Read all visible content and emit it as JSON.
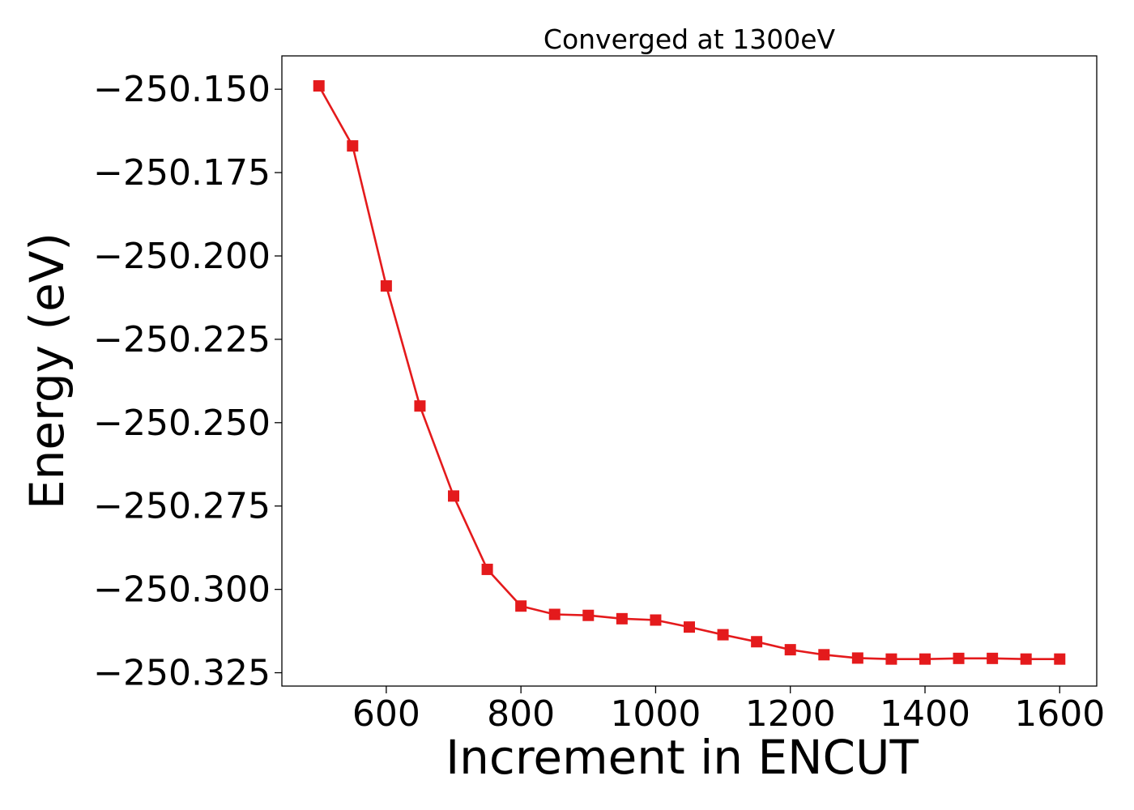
{
  "chart_data": {
    "type": "line",
    "title": "Converged at 1300eV",
    "xlabel": "Increment in ENCUT",
    "ylabel": "Energy (eV)",
    "xlim": [
      445,
      1655
    ],
    "ylim": [
      -250.329,
      -250.14
    ],
    "x_ticks": [
      600,
      800,
      1000,
      1200,
      1400,
      1600
    ],
    "x_tick_labels": [
      "600",
      "800",
      "1000",
      "1200",
      "1400",
      "1600"
    ],
    "y_ticks": [
      -250.15,
      -250.175,
      -250.2,
      -250.225,
      -250.25,
      -250.275,
      -250.3,
      -250.325
    ],
    "y_tick_labels": [
      "−250.150",
      "−250.175",
      "−250.200",
      "−250.225",
      "−250.250",
      "−250.275",
      "−250.300",
      "−250.325"
    ],
    "grid": false,
    "series": [
      {
        "color": "#e41a1c",
        "marker": "square",
        "x": [
          500,
          550,
          600,
          650,
          700,
          750,
          800,
          850,
          900,
          950,
          1000,
          1050,
          1100,
          1150,
          1200,
          1250,
          1300,
          1350,
          1400,
          1450,
          1500,
          1550,
          1600
        ],
        "y": [
          -250.149,
          -250.167,
          -250.209,
          -250.245,
          -250.272,
          -250.294,
          -250.305,
          -250.3075,
          -250.3078,
          -250.3088,
          -250.3092,
          -250.3113,
          -250.3136,
          -250.3157,
          -250.3181,
          -250.3196,
          -250.3206,
          -250.3209,
          -250.3209,
          -250.3207,
          -250.3207,
          -250.3209,
          -250.3209
        ]
      }
    ]
  }
}
